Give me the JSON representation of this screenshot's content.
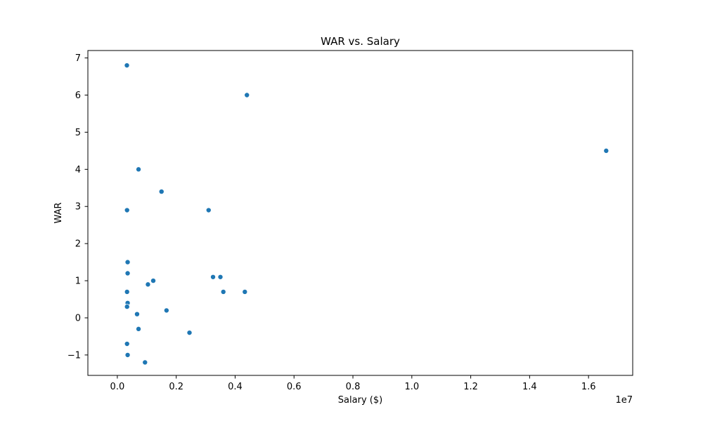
{
  "chart_data": {
    "type": "scatter",
    "title": "WAR vs. Salary",
    "xlabel": "Salary ($)",
    "ylabel": "WAR",
    "x_offset_label": "1e7",
    "xlim": [
      -0.1,
      1.75
    ],
    "ylim": [
      -1.55,
      7.2
    ],
    "x_scale_note": "values in units of 1e7",
    "x_ticks": [
      0.0,
      0.2,
      0.4,
      0.6,
      0.8,
      1.0,
      1.2,
      1.4,
      1.6
    ],
    "x_tick_labels": [
      "0.0",
      "0.2",
      "0.4",
      "0.6",
      "0.8",
      "1.0",
      "1.2",
      "1.4",
      "1.6"
    ],
    "y_ticks": [
      -1,
      0,
      1,
      2,
      3,
      4,
      5,
      6,
      7
    ],
    "y_tick_labels": [
      "−1",
      "0",
      "1",
      "2",
      "3",
      "4",
      "5",
      "6",
      "7"
    ],
    "grid": false,
    "color": "#1f77b4",
    "series": [
      {
        "points": [
          {
            "x": 0.0325,
            "y": 6.8
          },
          {
            "x": 0.44,
            "y": 6.0
          },
          {
            "x": 1.66,
            "y": 4.5
          },
          {
            "x": 0.072,
            "y": 4.0
          },
          {
            "x": 0.15,
            "y": 3.4
          },
          {
            "x": 0.033,
            "y": 2.9
          },
          {
            "x": 0.31,
            "y": 2.9
          },
          {
            "x": 0.035,
            "y": 1.5
          },
          {
            "x": 0.035,
            "y": 1.2
          },
          {
            "x": 0.325,
            "y": 1.1
          },
          {
            "x": 0.35,
            "y": 1.1
          },
          {
            "x": 0.122,
            "y": 1.0
          },
          {
            "x": 0.104,
            "y": 0.9
          },
          {
            "x": 0.033,
            "y": 0.7
          },
          {
            "x": 0.36,
            "y": 0.7
          },
          {
            "x": 0.433,
            "y": 0.7
          },
          {
            "x": 0.035,
            "y": 0.4
          },
          {
            "x": 0.033,
            "y": 0.3
          },
          {
            "x": 0.167,
            "y": 0.2
          },
          {
            "x": 0.067,
            "y": 0.1
          },
          {
            "x": 0.072,
            "y": -0.3
          },
          {
            "x": 0.245,
            "y": -0.4
          },
          {
            "x": 0.033,
            "y": -0.7
          },
          {
            "x": 0.035,
            "y": -1.0
          },
          {
            "x": 0.094,
            "y": -1.2
          }
        ]
      }
    ]
  }
}
